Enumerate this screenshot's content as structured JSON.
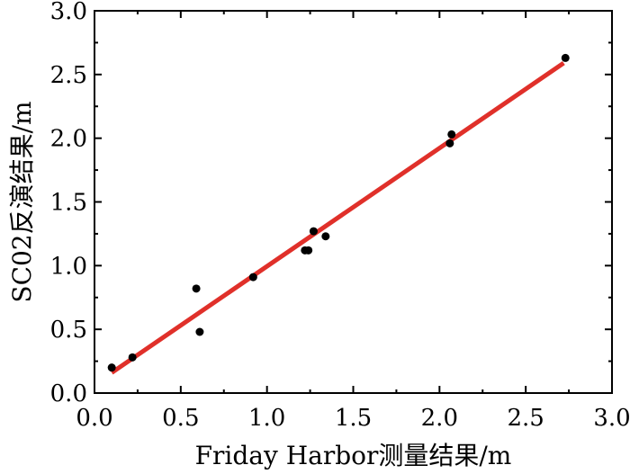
{
  "chart_data": {
    "type": "scatter",
    "xlabel": "Friday Harbor测量结果/m",
    "ylabel": "SC02反演结果/m",
    "xlim": [
      0.0,
      3.0
    ],
    "ylim": [
      0.0,
      3.0
    ],
    "x_ticks": [
      "0.0",
      "0.5",
      "1.0",
      "1.5",
      "2.0",
      "2.5",
      "3.0"
    ],
    "y_ticks": [
      "0.0",
      "0.5",
      "1.0",
      "1.5",
      "2.0",
      "2.5",
      "3.0"
    ],
    "grid": false,
    "points": [
      {
        "x": 0.1,
        "y": 0.2
      },
      {
        "x": 0.22,
        "y": 0.28
      },
      {
        "x": 0.59,
        "y": 0.82
      },
      {
        "x": 0.61,
        "y": 0.48
      },
      {
        "x": 0.92,
        "y": 0.91
      },
      {
        "x": 1.22,
        "y": 1.12
      },
      {
        "x": 1.24,
        "y": 1.12
      },
      {
        "x": 1.27,
        "y": 1.27
      },
      {
        "x": 1.34,
        "y": 1.23
      },
      {
        "x": 2.06,
        "y": 1.96
      },
      {
        "x": 2.07,
        "y": 2.03
      },
      {
        "x": 2.73,
        "y": 2.63
      }
    ],
    "fit_line": {
      "x1": 0.1,
      "y1": 0.16,
      "x2": 2.72,
      "y2": 2.59
    },
    "colors": {
      "points": "#000000",
      "fit_line": "#e0302a",
      "axes": "#000000"
    }
  }
}
